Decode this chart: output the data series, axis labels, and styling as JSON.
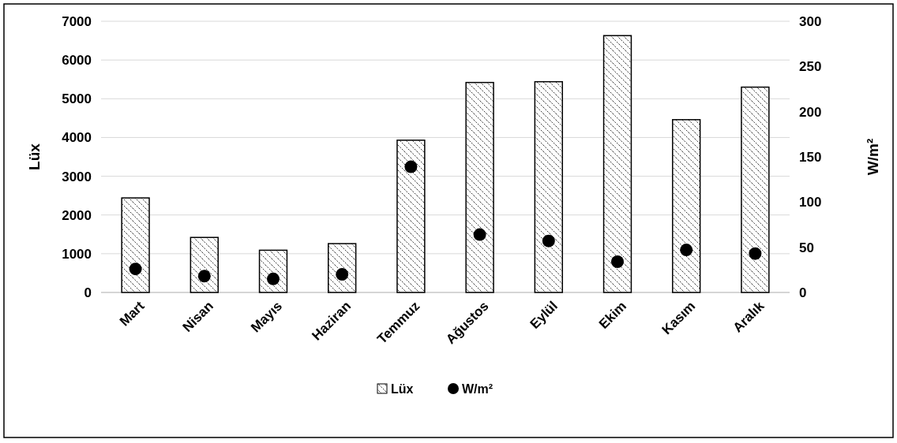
{
  "chart_data": {
    "type": "bar",
    "categories": [
      "Mart",
      "Nisan",
      "Mayıs",
      "Haziran",
      "Temmuz",
      "Ağustos",
      "Eylül",
      "Ekim",
      "Kasım",
      "Aralık"
    ],
    "series": [
      {
        "name": "Lüx",
        "color": "#000000",
        "values": [
          2440,
          1420,
          1090,
          1260,
          3930,
          5420,
          5440,
          6630,
          4460,
          5300
        ]
      },
      {
        "name": "W/m²",
        "type": "scatter",
        "axis": "y2",
        "color": "#000000",
        "values": [
          26,
          18,
          15,
          20,
          139,
          64,
          57,
          34,
          47,
          43
        ]
      }
    ],
    "ylabel": "Lüx",
    "y2label": "W/m²",
    "ylim": [
      0,
      7000
    ],
    "yticks": [
      0,
      1000,
      2000,
      3000,
      4000,
      5000,
      6000,
      7000
    ],
    "y2lim": [
      0,
      300
    ],
    "y2ticks": [
      0,
      50,
      100,
      150,
      200,
      250,
      300
    ],
    "grid": "y",
    "legend": "bottom",
    "marker": "circle"
  }
}
